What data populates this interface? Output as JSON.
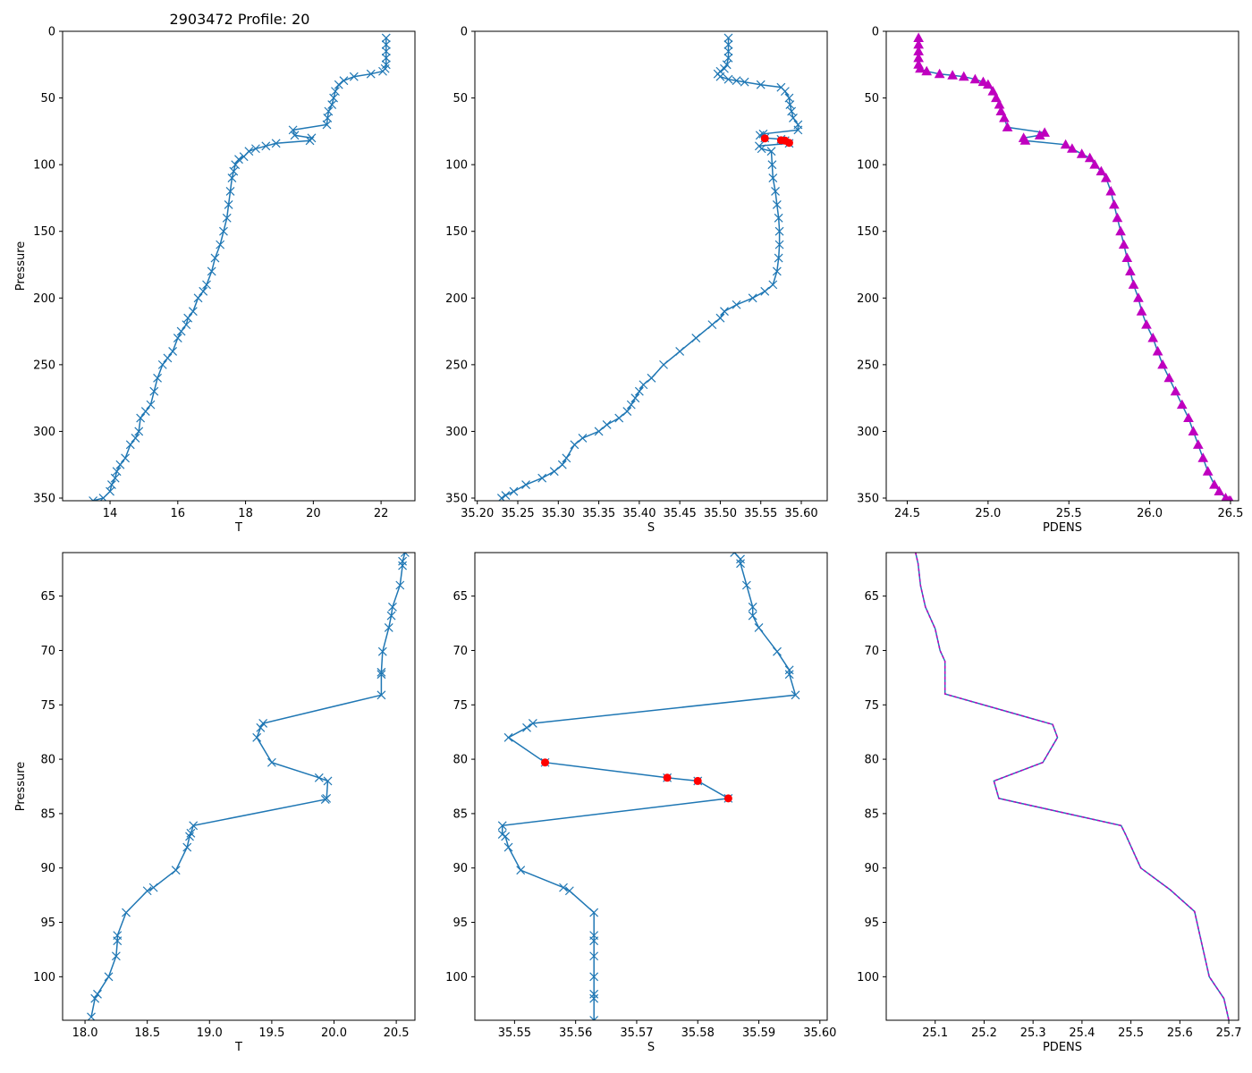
{
  "figure_title": "2903472 Profile: 20",
  "colors": {
    "line": "#1f77b4",
    "pdens_marker": "#bf00bf",
    "outlier": "#ff0000"
  },
  "chart_data": [
    {
      "id": "top-T",
      "type": "line",
      "marker": "x",
      "xlabel": "T",
      "ylabel": "Pressure",
      "xlim": [
        12.6,
        23.0
      ],
      "ylim": [
        352,
        0
      ],
      "xticks": [
        14,
        16,
        18,
        20,
        22
      ],
      "xticklabels": [
        "14",
        "16",
        "18",
        "20",
        "22"
      ],
      "yticks": [
        0,
        50,
        100,
        150,
        200,
        250,
        300,
        350
      ],
      "yticklabels": [
        "0",
        "50",
        "100",
        "150",
        "200",
        "250",
        "300",
        "350"
      ],
      "x": [
        22.15,
        22.15,
        22.15,
        22.15,
        22.15,
        22.12,
        22.05,
        21.7,
        21.2,
        20.9,
        20.75,
        20.65,
        20.6,
        20.55,
        20.45,
        20.42,
        20.4,
        19.4,
        19.45,
        19.95,
        19.9,
        18.9,
        18.6,
        18.3,
        18.1,
        17.95,
        17.8,
        17.7,
        17.65,
        17.6,
        17.55,
        17.5,
        17.45,
        17.35,
        17.25,
        17.1,
        17.0,
        16.85,
        16.75,
        16.6,
        16.45,
        16.3,
        16.25,
        16.1,
        16.0,
        15.85,
        15.7,
        15.55,
        15.4,
        15.3,
        15.2,
        15.05,
        14.9,
        14.85,
        14.75,
        14.6,
        14.45,
        14.3,
        14.2,
        14.15,
        14.05,
        14.0,
        13.8,
        13.5
      ],
      "y": [
        5,
        10,
        15,
        20,
        25,
        28,
        30,
        32,
        34,
        37,
        40,
        45,
        50,
        55,
        60,
        65,
        70,
        74,
        78,
        80,
        82,
        84,
        86,
        88,
        90,
        94,
        96,
        100,
        105,
        110,
        120,
        130,
        140,
        150,
        160,
        170,
        180,
        190,
        195,
        200,
        210,
        215,
        220,
        225,
        230,
        240,
        245,
        250,
        260,
        270,
        280,
        285,
        290,
        300,
        305,
        310,
        320,
        325,
        330,
        335,
        340,
        345,
        350,
        352
      ]
    },
    {
      "id": "top-S",
      "type": "line",
      "marker": "x",
      "xlabel": "S",
      "ylabel": "",
      "xlim": [
        35.197,
        35.632
      ],
      "ylim": [
        352,
        0
      ],
      "xticks": [
        35.2,
        35.25,
        35.3,
        35.35,
        35.4,
        35.45,
        35.5,
        35.55,
        35.6
      ],
      "xticklabels": [
        "35.20",
        "35.25",
        "35.30",
        "35.35",
        "35.40",
        "35.45",
        "35.50",
        "35.55",
        "35.60"
      ],
      "yticks": [
        0,
        50,
        100,
        150,
        200,
        250,
        300,
        350
      ],
      "yticklabels": [
        "0",
        "50",
        "100",
        "150",
        "200",
        "250",
        "300",
        "350"
      ],
      "x": [
        35.51,
        35.51,
        35.51,
        35.51,
        35.508,
        35.505,
        35.5,
        35.497,
        35.5,
        35.51,
        35.52,
        35.53,
        35.55,
        35.575,
        35.58,
        35.585,
        35.586,
        35.588,
        35.59,
        35.596,
        35.596,
        35.553,
        35.549,
        35.555,
        35.575,
        35.58,
        35.585,
        35.548,
        35.551,
        35.563,
        35.564,
        35.565,
        35.568,
        35.57,
        35.572,
        35.573,
        35.573,
        35.572,
        35.57,
        35.565,
        35.555,
        35.54,
        35.52,
        35.505,
        35.5,
        35.49,
        35.47,
        35.45,
        35.43,
        35.415,
        35.405,
        35.4,
        35.395,
        35.39,
        35.385,
        35.375,
        35.36,
        35.35,
        35.33,
        35.32,
        35.31,
        35.305,
        35.295,
        35.28,
        35.26,
        35.245,
        35.235,
        35.23
      ],
      "y": [
        5,
        10,
        15,
        20,
        25,
        28,
        30,
        32,
        34,
        36,
        37,
        38,
        40,
        42,
        45,
        50,
        55,
        60,
        65,
        70,
        74,
        77,
        78,
        80,
        81,
        82,
        84,
        86,
        88,
        90,
        100,
        110,
        120,
        130,
        140,
        150,
        160,
        170,
        180,
        190,
        195,
        200,
        205,
        210,
        215,
        220,
        230,
        240,
        250,
        260,
        265,
        270,
        275,
        280,
        285,
        290,
        295,
        300,
        305,
        310,
        320,
        325,
        330,
        335,
        340,
        345,
        348,
        350
      ]
    },
    {
      "id": "top-PDENS",
      "type": "line",
      "marker": "^",
      "xlabel": "PDENS",
      "ylabel": "",
      "xlim": [
        24.37,
        26.55
      ],
      "ylim": [
        352,
        0
      ],
      "xticks": [
        24.5,
        25.0,
        25.5,
        26.0,
        26.5
      ],
      "xticklabels": [
        "24.5",
        "25.0",
        "25.5",
        "26.0",
        "26.5"
      ],
      "yticks": [
        0,
        50,
        100,
        150,
        200,
        250,
        300,
        350
      ],
      "yticklabels": [
        "0",
        "50",
        "100",
        "150",
        "200",
        "250",
        "300",
        "350"
      ],
      "x": [
        24.57,
        24.57,
        24.57,
        24.57,
        24.57,
        24.58,
        24.62,
        24.7,
        24.78,
        24.85,
        24.92,
        24.97,
        25.0,
        25.03,
        25.05,
        25.07,
        25.08,
        25.1,
        25.12,
        25.35,
        25.32,
        25.22,
        25.23,
        25.48,
        25.52,
        25.58,
        25.63,
        25.66,
        25.7,
        25.73,
        25.76,
        25.78,
        25.8,
        25.82,
        25.84,
        25.86,
        25.88,
        25.9,
        25.93,
        25.95,
        25.98,
        26.02,
        26.05,
        26.08,
        26.12,
        26.16,
        26.2,
        26.24,
        26.27,
        26.3,
        26.33,
        26.36,
        26.4,
        26.43,
        26.47,
        26.49,
        26.5
      ],
      "y": [
        5,
        10,
        15,
        20,
        25,
        28,
        30,
        32,
        33,
        34,
        36,
        38,
        40,
        45,
        50,
        55,
        60,
        65,
        72,
        76,
        78,
        80,
        82,
        85,
        88,
        92,
        95,
        100,
        105,
        110,
        120,
        130,
        140,
        150,
        160,
        170,
        180,
        190,
        200,
        210,
        220,
        230,
        240,
        250,
        260,
        270,
        280,
        290,
        300,
        310,
        320,
        330,
        340,
        345,
        350,
        352,
        352
      ]
    },
    {
      "id": "bottom-T",
      "type": "line",
      "marker": "x",
      "xlabel": "T",
      "ylabel": "Pressure",
      "xlim": [
        17.82,
        20.65
      ],
      "ylim": [
        104,
        61
      ],
      "xticks": [
        18.0,
        18.5,
        19.0,
        19.5,
        20.0,
        20.5
      ],
      "xticklabels": [
        "18.0",
        "18.5",
        "19.0",
        "19.5",
        "20.0",
        "20.5"
      ],
      "yticks": [
        65,
        70,
        75,
        80,
        85,
        90,
        95,
        100
      ],
      "yticklabels": [
        "65",
        "70",
        "75",
        "80",
        "85",
        "90",
        "95",
        "100"
      ],
      "x": [
        20.57,
        20.55,
        20.55,
        20.53,
        20.47,
        20.46,
        20.44,
        20.39,
        20.38,
        20.38,
        20.38,
        19.43,
        19.41,
        19.38,
        19.5,
        19.88,
        19.95,
        19.94,
        19.93,
        18.87,
        18.85,
        18.84,
        18.82,
        18.73,
        18.55,
        18.5,
        18.33,
        18.26,
        18.26,
        18.25,
        18.19,
        18.1,
        18.08,
        18.05
      ],
      "y": [
        61,
        61.8,
        62.2,
        64.0,
        66.0,
        66.8,
        67.9,
        70.1,
        72.0,
        72.2,
        74.1,
        76.7,
        77.1,
        78.0,
        80.3,
        81.7,
        82.0,
        83.6,
        83.7,
        86.1,
        86.8,
        87.1,
        88.1,
        90.2,
        91.8,
        92.1,
        94.1,
        96.2,
        96.7,
        98.1,
        100.0,
        101.6,
        102.0,
        103.7
      ]
    },
    {
      "id": "bottom-S",
      "type": "line",
      "marker": "x",
      "xlabel": "S",
      "ylabel": "",
      "xlim": [
        35.5435,
        35.6012
      ],
      "ylim": [
        104,
        61
      ],
      "xticks": [
        35.55,
        35.56,
        35.57,
        35.58,
        35.59,
        35.6
      ],
      "xticklabels": [
        "35.55",
        "35.56",
        "35.57",
        "35.58",
        "35.59",
        "35.60"
      ],
      "yticks": [
        65,
        70,
        75,
        80,
        85,
        90,
        95,
        100
      ],
      "yticklabels": [
        "65",
        "70",
        "75",
        "80",
        "85",
        "90",
        "95",
        "100"
      ],
      "x": [
        35.586,
        35.587,
        35.587,
        35.588,
        35.589,
        35.589,
        35.59,
        35.593,
        35.595,
        35.595,
        35.596,
        35.553,
        35.552,
        35.549,
        35.555,
        35.575,
        35.58,
        35.585,
        35.548,
        35.548,
        35.5485,
        35.549,
        35.551,
        35.558,
        35.559,
        35.563,
        35.563,
        35.563,
        35.563,
        35.563,
        35.563,
        35.563,
        35.563
      ],
      "y": [
        61,
        61.6,
        62.0,
        64.0,
        66.0,
        66.8,
        67.9,
        70.1,
        71.8,
        72.2,
        74.1,
        76.7,
        77.1,
        78.0,
        80.3,
        81.7,
        82.0,
        83.6,
        86.1,
        86.9,
        87.1,
        88.1,
        90.2,
        91.8,
        92.1,
        94.1,
        96.2,
        96.7,
        98.1,
        100.0,
        101.6,
        102.0,
        104.0
      ],
      "outliers": {
        "x": [
          35.555,
          35.575,
          35.58,
          35.585
        ],
        "y": [
          80.3,
          81.7,
          82.0,
          83.6
        ]
      }
    },
    {
      "id": "bottom-PDENS",
      "type": "line",
      "marker": "none",
      "xlabel": "PDENS",
      "ylabel": "",
      "xlim": [
        25.0,
        25.72
      ],
      "ylim": [
        104,
        61
      ],
      "xticks": [
        25.1,
        25.2,
        25.3,
        25.4,
        25.5,
        25.6,
        25.7
      ],
      "xticklabels": [
        "25.1",
        "25.2",
        "25.3",
        "25.4",
        "25.5",
        "25.6",
        "25.7"
      ],
      "yticks": [
        65,
        70,
        75,
        80,
        85,
        90,
        95,
        100
      ],
      "yticklabels": [
        "65",
        "70",
        "75",
        "80",
        "85",
        "90",
        "95",
        "100"
      ],
      "x": [
        25.06,
        25.065,
        25.07,
        25.08,
        25.1,
        25.11,
        25.12,
        25.12,
        25.12,
        25.34,
        25.35,
        25.32,
        25.22,
        25.23,
        25.48,
        25.49,
        25.5,
        25.52,
        25.58,
        25.63,
        25.64,
        25.65,
        25.66,
        25.69,
        25.7
      ],
      "y": [
        61,
        62,
        64,
        66,
        68,
        70,
        71,
        72,
        74,
        76.8,
        78,
        80.3,
        82,
        83.6,
        86.1,
        87,
        88,
        90,
        92,
        94,
        96,
        98,
        100,
        102,
        104
      ]
    }
  ]
}
